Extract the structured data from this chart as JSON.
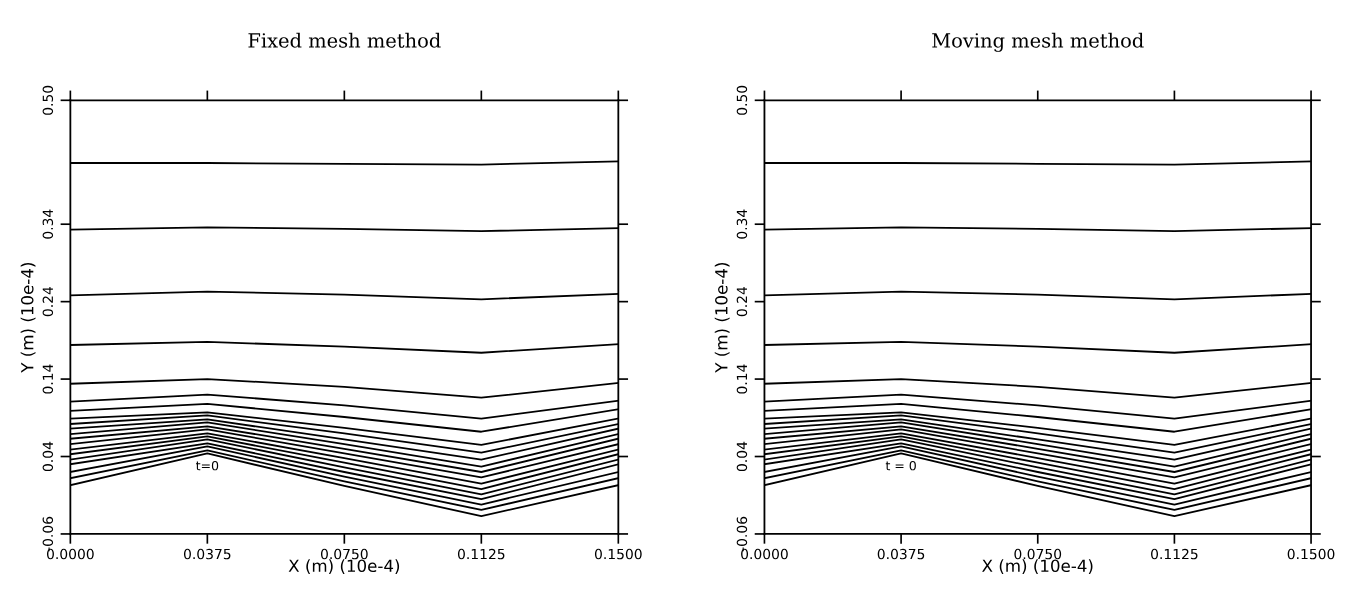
{
  "chart_data": [
    {
      "type": "line",
      "title": "Fixed mesh method",
      "xlabel": "X (m) (10e-4)",
      "ylabel": "Y (m) (10e-4)",
      "x": [
        0,
        0.0375,
        0.075,
        0.1125,
        0.15
      ],
      "xlim": [
        0,
        0.15
      ],
      "ylim": [
        -0.06,
        0.5
      ],
      "xticks": [
        {
          "value": 0,
          "label": "0.0000"
        },
        {
          "value": 0.0375,
          "label": "0.0375"
        },
        {
          "value": 0.075,
          "label": "0.0750"
        },
        {
          "value": 0.1125,
          "label": "0.1125"
        },
        {
          "value": 0.15,
          "label": "0.1500"
        }
      ],
      "yticks": [
        -0.06,
        0.04,
        0.14,
        0.24,
        0.34,
        {
          "value": 0.5,
          "label": "0.50"
        }
      ],
      "grid": false,
      "legend": false,
      "marker": "none",
      "line_style": "solid",
      "annotations": [
        "t=0"
      ],
      "series": [
        {
          "color": "#000000",
          "values": [
            0.419,
            0.419,
            0.418,
            0.417,
            0.421
          ]
        },
        {
          "color": "#000000",
          "values": [
            0.333,
            0.336,
            0.334,
            0.331,
            0.335
          ]
        },
        {
          "color": "#000000",
          "values": [
            0.248,
            0.253,
            0.249,
            0.243,
            0.25
          ]
        },
        {
          "color": "#000000",
          "values": [
            0.184,
            0.188,
            0.182,
            0.174,
            0.185
          ]
        },
        {
          "color": "#000000",
          "values": [
            0.134,
            0.14,
            0.13,
            0.116,
            0.135
          ]
        },
        {
          "color": "#000000",
          "values": [
            0.111,
            0.12,
            0.106,
            0.089,
            0.112
          ]
        },
        {
          "color": "#000000",
          "values": [
            0.099,
            0.108,
            0.091,
            0.072,
            0.101
          ]
        },
        {
          "color": "#000000",
          "values": [
            0.089,
            0.097,
            0.077,
            0.055,
            0.089
          ]
        },
        {
          "color": "#000000",
          "values": [
            0.082,
            0.093,
            0.07,
            0.045,
            0.082
          ]
        },
        {
          "color": "#000000",
          "values": [
            0.076,
            0.088,
            0.062,
            0.036,
            0.076
          ]
        },
        {
          "color": "#000000",
          "values": [
            0.069,
            0.084,
            0.056,
            0.027,
            0.069
          ]
        },
        {
          "color": "#000000",
          "values": [
            0.063,
            0.079,
            0.05,
            0.02,
            0.063
          ]
        },
        {
          "color": "#000000",
          "values": [
            0.056,
            0.075,
            0.044,
            0.013,
            0.056
          ]
        },
        {
          "color": "#000000",
          "values": [
            0.049,
            0.07,
            0.038,
            0.005,
            0.049
          ]
        },
        {
          "color": "#000000",
          "values": [
            0.043,
            0.066,
            0.032,
            -0.002,
            0.043
          ]
        },
        {
          "color": "#000000",
          "values": [
            0.036,
            0.062,
            0.026,
            -0.009,
            0.036
          ]
        },
        {
          "color": "#000000",
          "values": [
            0.03,
            0.057,
            0.02,
            -0.015,
            0.03
          ]
        },
        {
          "color": "#000000",
          "values": [
            0.02,
            0.053,
            0.014,
            -0.022,
            0.02
          ]
        },
        {
          "color": "#000000",
          "values": [
            0.012,
            0.048,
            0.008,
            -0.029,
            0.012
          ]
        },
        {
          "color": "#000000",
          "values": [
            0.003,
            0.044,
            0.002,
            -0.037,
            0.003
          ]
        }
      ]
    },
    {
      "type": "line",
      "title": "Moving mesh method",
      "xlabel": "X (m) (10e-4)",
      "ylabel": "Y (m) (10e-4)",
      "x": [
        0,
        0.0375,
        0.075,
        0.1125,
        0.15
      ],
      "xlim": [
        0,
        0.15
      ],
      "ylim": [
        -0.06,
        0.5
      ],
      "xticks": [
        {
          "value": 0,
          "label": "0.0000"
        },
        {
          "value": 0.0375,
          "label": "0.0375"
        },
        {
          "value": 0.075,
          "label": "0.0750"
        },
        {
          "value": 0.1125,
          "label": "0.1125"
        },
        {
          "value": 0.15,
          "label": "0.1500"
        }
      ],
      "yticks": [
        -0.06,
        0.04,
        0.14,
        0.24,
        0.34,
        {
          "value": 0.5,
          "label": "0.50"
        }
      ],
      "grid": false,
      "legend": false,
      "marker": "none",
      "line_style": "solid",
      "annotations": [
        "t = 0"
      ],
      "series": [
        {
          "color": "#000000",
          "values": [
            0.419,
            0.419,
            0.418,
            0.417,
            0.421
          ]
        },
        {
          "color": "#000000",
          "values": [
            0.333,
            0.336,
            0.334,
            0.331,
            0.335
          ]
        },
        {
          "color": "#000000",
          "values": [
            0.248,
            0.253,
            0.249,
            0.243,
            0.25
          ]
        },
        {
          "color": "#000000",
          "values": [
            0.184,
            0.188,
            0.182,
            0.174,
            0.185
          ]
        },
        {
          "color": "#000000",
          "values": [
            0.134,
            0.14,
            0.13,
            0.116,
            0.135
          ]
        },
        {
          "color": "#000000",
          "values": [
            0.111,
            0.12,
            0.106,
            0.089,
            0.112
          ]
        },
        {
          "color": "#000000",
          "values": [
            0.099,
            0.108,
            0.091,
            0.072,
            0.101
          ]
        },
        {
          "color": "#000000",
          "values": [
            0.089,
            0.097,
            0.077,
            0.055,
            0.089
          ]
        },
        {
          "color": "#000000",
          "values": [
            0.082,
            0.093,
            0.07,
            0.045,
            0.082
          ]
        },
        {
          "color": "#000000",
          "values": [
            0.076,
            0.088,
            0.062,
            0.036,
            0.076
          ]
        },
        {
          "color": "#000000",
          "values": [
            0.069,
            0.084,
            0.056,
            0.027,
            0.069
          ]
        },
        {
          "color": "#000000",
          "values": [
            0.063,
            0.079,
            0.05,
            0.02,
            0.063
          ]
        },
        {
          "color": "#000000",
          "values": [
            0.056,
            0.075,
            0.044,
            0.013,
            0.056
          ]
        },
        {
          "color": "#000000",
          "values": [
            0.049,
            0.07,
            0.038,
            0.005,
            0.049
          ]
        },
        {
          "color": "#000000",
          "values": [
            0.043,
            0.066,
            0.032,
            -0.002,
            0.043
          ]
        },
        {
          "color": "#000000",
          "values": [
            0.036,
            0.062,
            0.026,
            -0.009,
            0.036
          ]
        },
        {
          "color": "#000000",
          "values": [
            0.03,
            0.057,
            0.02,
            -0.015,
            0.03
          ]
        },
        {
          "color": "#000000",
          "values": [
            0.02,
            0.053,
            0.014,
            -0.022,
            0.02
          ]
        },
        {
          "color": "#000000",
          "values": [
            0.012,
            0.048,
            0.008,
            -0.029,
            0.012
          ]
        },
        {
          "color": "#000000",
          "values": [
            0.003,
            0.044,
            0.002,
            -0.037,
            0.003
          ]
        }
      ]
    }
  ]
}
